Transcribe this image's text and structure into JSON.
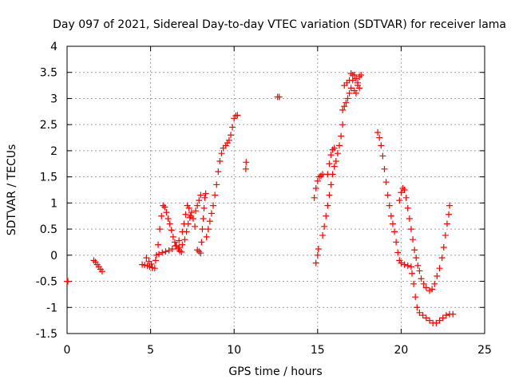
{
  "chart_data": {
    "type": "scatter",
    "title": "Day 097 of 2021, Sidereal Day-to-day VTEC variation (SDTVAR) for receiver lama",
    "xlabel": "GPS time / hours",
    "ylabel": "SDTVAR / TECUs",
    "xlim": [
      0,
      25
    ],
    "ylim": [
      -1.5,
      4
    ],
    "xticks": [
      0,
      5,
      10,
      15,
      20,
      25
    ],
    "xtick_labels": [
      "0",
      "5",
      "10",
      "15",
      "20",
      "25"
    ],
    "yticks": [
      -1.5,
      -1,
      -0.5,
      0,
      0.5,
      1,
      1.5,
      2,
      2.5,
      3,
      3.5,
      4
    ],
    "ytick_labels": [
      "-1.5",
      "-1",
      "-0.5",
      "0",
      "0.5",
      "1",
      "1.5",
      "2",
      "2.5",
      "3",
      "3.5",
      "4"
    ],
    "grid": true,
    "marker": "plus",
    "color": "#ff0000",
    "series": [
      {
        "name": "SDTVAR",
        "points": [
          [
            0.0,
            -0.5
          ],
          [
            0.05,
            -0.5
          ],
          [
            1.6,
            -0.1
          ],
          [
            1.7,
            -0.13
          ],
          [
            1.8,
            -0.18
          ],
          [
            1.9,
            -0.22
          ],
          [
            2.0,
            -0.27
          ],
          [
            2.1,
            -0.31
          ],
          [
            4.5,
            -0.18
          ],
          [
            4.65,
            -0.19
          ],
          [
            4.8,
            -0.2
          ],
          [
            4.95,
            -0.22
          ],
          [
            5.1,
            -0.24
          ],
          [
            5.25,
            -0.25
          ],
          [
            4.75,
            -0.05
          ],
          [
            4.9,
            -0.12
          ],
          [
            5.05,
            -0.17
          ],
          [
            5.3,
            -0.1
          ],
          [
            5.35,
            0.0
          ],
          [
            5.45,
            0.2
          ],
          [
            5.55,
            0.5
          ],
          [
            5.65,
            0.75
          ],
          [
            5.75,
            0.95
          ],
          [
            5.85,
            0.92
          ],
          [
            5.95,
            0.82
          ],
          [
            6.05,
            0.7
          ],
          [
            6.15,
            0.6
          ],
          [
            6.25,
            0.48
          ],
          [
            6.35,
            0.35
          ],
          [
            6.45,
            0.25
          ],
          [
            6.55,
            0.18
          ],
          [
            6.65,
            0.12
          ],
          [
            6.75,
            0.08
          ],
          [
            6.85,
            0.06
          ],
          [
            5.5,
            0.02
          ],
          [
            5.7,
            0.05
          ],
          [
            5.9,
            0.07
          ],
          [
            6.1,
            0.09
          ],
          [
            6.3,
            0.12
          ],
          [
            6.5,
            0.18
          ],
          [
            6.7,
            0.28
          ],
          [
            6.9,
            0.45
          ],
          [
            7.0,
            0.6
          ],
          [
            7.1,
            0.78
          ],
          [
            7.2,
            0.95
          ],
          [
            7.3,
            0.9
          ],
          [
            7.4,
            0.75
          ],
          [
            6.7,
            0.15
          ],
          [
            6.9,
            0.2
          ],
          [
            7.05,
            0.3
          ],
          [
            7.15,
            0.45
          ],
          [
            7.25,
            0.6
          ],
          [
            7.35,
            0.72
          ],
          [
            7.45,
            0.82
          ],
          [
            7.55,
            0.7
          ],
          [
            7.65,
            0.55
          ],
          [
            7.8,
            0.1
          ],
          [
            7.9,
            0.07
          ],
          [
            8.0,
            0.04
          ],
          [
            8.05,
            0.25
          ],
          [
            8.1,
            0.5
          ],
          [
            8.15,
            0.7
          ],
          [
            8.2,
            0.9
          ],
          [
            8.25,
            1.1
          ],
          [
            8.3,
            1.18
          ],
          [
            7.7,
            0.85
          ],
          [
            7.8,
            0.95
          ],
          [
            7.9,
            1.05
          ],
          [
            8.0,
            1.15
          ],
          [
            8.35,
            0.35
          ],
          [
            8.45,
            0.5
          ],
          [
            8.55,
            0.65
          ],
          [
            8.65,
            0.8
          ],
          [
            8.75,
            0.95
          ],
          [
            8.85,
            1.15
          ],
          [
            8.95,
            1.35
          ],
          [
            9.05,
            1.6
          ],
          [
            9.15,
            1.8
          ],
          [
            9.25,
            1.95
          ],
          [
            9.35,
            2.05
          ],
          [
            9.5,
            2.1
          ],
          [
            9.6,
            2.15
          ],
          [
            9.7,
            2.2
          ],
          [
            9.8,
            2.3
          ],
          [
            9.9,
            2.45
          ],
          [
            10.0,
            2.62
          ],
          [
            10.1,
            2.67
          ],
          [
            10.2,
            2.68
          ],
          [
            10.7,
            1.65
          ],
          [
            10.72,
            1.78
          ],
          [
            12.6,
            3.03
          ],
          [
            12.7,
            3.03
          ],
          [
            14.8,
            1.1
          ],
          [
            14.9,
            1.28
          ],
          [
            15.0,
            1.42
          ],
          [
            15.1,
            1.5
          ],
          [
            15.2,
            1.52
          ],
          [
            15.3,
            1.55
          ],
          [
            14.9,
            -0.15
          ],
          [
            15.0,
            0.0
          ],
          [
            15.05,
            0.12
          ],
          [
            15.3,
            0.38
          ],
          [
            15.4,
            0.55
          ],
          [
            15.5,
            0.75
          ],
          [
            15.6,
            0.95
          ],
          [
            15.7,
            1.15
          ],
          [
            15.8,
            1.35
          ],
          [
            15.9,
            1.55
          ],
          [
            16.0,
            1.7
          ],
          [
            16.1,
            1.8
          ],
          [
            16.2,
            1.95
          ],
          [
            16.3,
            2.1
          ],
          [
            16.4,
            2.28
          ],
          [
            16.5,
            2.5
          ],
          [
            15.6,
            1.55
          ],
          [
            15.7,
            1.75
          ],
          [
            15.8,
            1.92
          ],
          [
            15.9,
            2.02
          ],
          [
            16.0,
            2.05
          ],
          [
            16.5,
            2.78
          ],
          [
            16.6,
            2.85
          ],
          [
            16.7,
            2.92
          ],
          [
            16.8,
            3.0
          ],
          [
            16.9,
            3.1
          ],
          [
            17.0,
            3.2
          ],
          [
            17.1,
            3.35
          ],
          [
            17.2,
            3.45
          ],
          [
            17.3,
            3.38
          ],
          [
            17.4,
            3.25
          ],
          [
            17.5,
            3.2
          ],
          [
            16.6,
            3.25
          ],
          [
            16.75,
            3.3
          ],
          [
            16.9,
            3.35
          ],
          [
            17.0,
            3.48
          ],
          [
            17.1,
            3.45
          ],
          [
            17.2,
            3.15
          ],
          [
            17.3,
            3.1
          ],
          [
            17.4,
            3.3
          ],
          [
            17.5,
            3.42
          ],
          [
            17.6,
            3.45
          ],
          [
            18.6,
            2.35
          ],
          [
            18.7,
            2.25
          ],
          [
            18.8,
            2.1
          ],
          [
            18.9,
            1.9
          ],
          [
            19.0,
            1.65
          ],
          [
            19.1,
            1.4
          ],
          [
            19.2,
            1.15
          ],
          [
            19.3,
            0.95
          ],
          [
            19.4,
            0.75
          ],
          [
            19.5,
            0.6
          ],
          [
            19.6,
            0.45
          ],
          [
            19.7,
            0.25
          ],
          [
            19.8,
            0.05
          ],
          [
            19.9,
            -0.1
          ],
          [
            20.0,
            -0.15
          ],
          [
            20.2,
            -0.18
          ],
          [
            20.4,
            -0.2
          ],
          [
            20.6,
            -0.22
          ],
          [
            19.9,
            1.05
          ],
          [
            20.0,
            1.2
          ],
          [
            20.1,
            1.28
          ],
          [
            20.2,
            1.25
          ],
          [
            20.3,
            1.1
          ],
          [
            20.4,
            0.9
          ],
          [
            20.5,
            0.7
          ],
          [
            20.6,
            0.5
          ],
          [
            20.7,
            0.3
          ],
          [
            20.8,
            0.1
          ],
          [
            20.9,
            -0.05
          ],
          [
            21.0,
            -0.2
          ],
          [
            21.1,
            -0.3
          ],
          [
            21.2,
            -0.45
          ],
          [
            21.35,
            -0.55
          ],
          [
            21.5,
            -0.62
          ],
          [
            21.7,
            -0.68
          ],
          [
            21.85,
            -0.65
          ],
          [
            22.0,
            -0.55
          ],
          [
            22.15,
            -0.4
          ],
          [
            22.3,
            -0.25
          ],
          [
            22.45,
            -0.05
          ],
          [
            22.55,
            0.15
          ],
          [
            22.65,
            0.38
          ],
          [
            22.75,
            0.6
          ],
          [
            22.85,
            0.78
          ],
          [
            22.9,
            0.95
          ],
          [
            20.65,
            -0.35
          ],
          [
            20.75,
            -0.55
          ],
          [
            20.85,
            -0.8
          ],
          [
            20.95,
            -1.0
          ],
          [
            21.1,
            -1.1
          ],
          [
            21.3,
            -1.15
          ],
          [
            21.5,
            -1.2
          ],
          [
            21.7,
            -1.25
          ],
          [
            21.9,
            -1.3
          ],
          [
            22.1,
            -1.3
          ],
          [
            22.3,
            -1.25
          ],
          [
            22.5,
            -1.2
          ],
          [
            22.7,
            -1.15
          ],
          [
            22.9,
            -1.13
          ],
          [
            23.1,
            -1.13
          ]
        ]
      }
    ]
  }
}
